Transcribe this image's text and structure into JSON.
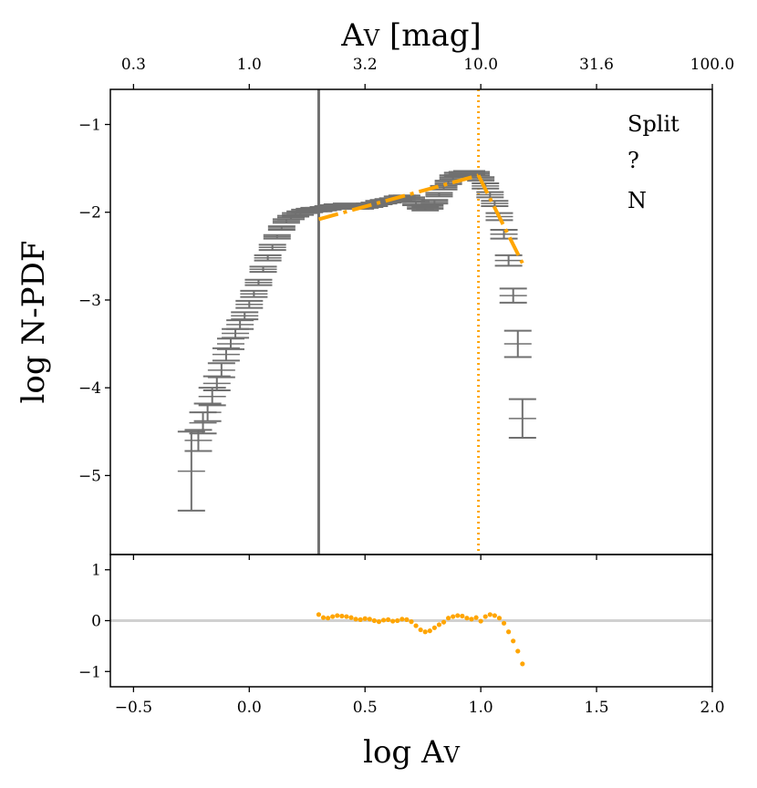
{
  "chart_data": [
    {
      "type": "errorbar",
      "panel": "main",
      "title": "",
      "xlabel": "log A",
      "xlabel_sub": "V",
      "ylabel": "log N-PDF",
      "top_xlabel": "A",
      "top_xlabel_sub": "V",
      "top_xlabel_suffix": " [mag]",
      "xlim": [
        -0.6,
        2.0
      ],
      "ylim": [
        -5.9,
        -0.6
      ],
      "x_ticks": [
        -0.5,
        0.0,
        0.5,
        1.0,
        1.5,
        2.0
      ],
      "x_tick_labels": [
        "−0.5",
        "0.0",
        "0.5",
        "1.0",
        "1.5",
        "2.0"
      ],
      "y_ticks": [
        -1,
        -2,
        -3,
        -4,
        -5
      ],
      "y_tick_labels": [
        "−1",
        "−2",
        "−3",
        "−4",
        "−5"
      ],
      "top_ticks_log": [
        -0.5,
        0.0,
        0.5,
        1.0,
        1.5,
        2.0
      ],
      "top_tick_labels": [
        "0.3",
        "1.0",
        "3.2",
        "10.0",
        "31.6",
        "100.0"
      ],
      "annotations": [
        "Split",
        "?",
        "N"
      ],
      "vertical_lines": [
        {
          "x": 0.3,
          "style": "solid",
          "color": "#707070"
        },
        {
          "x": 0.99,
          "style": "dotted",
          "color": "#FFA500"
        }
      ],
      "fits": [
        {
          "x": [
            0.3,
            0.99
          ],
          "y": [
            -2.08,
            -1.58
          ],
          "style": "dashdot",
          "color": "#FFA500"
        },
        {
          "x": [
            0.99,
            1.18
          ],
          "y": [
            -1.58,
            -2.58
          ],
          "style": "dashdot",
          "color": "#FFA500"
        }
      ],
      "series": [
        {
          "name": "N-PDF",
          "color": "#707070",
          "points": [
            [
              -0.25,
              -4.95,
              0.45
            ],
            [
              -0.22,
              -4.6,
              0.12
            ],
            [
              -0.2,
              -4.4,
              0.12
            ],
            [
              -0.18,
              -4.28,
              0.1
            ],
            [
              -0.16,
              -4.1,
              0.1
            ],
            [
              -0.14,
              -3.95,
              0.08
            ],
            [
              -0.12,
              -3.8,
              0.08
            ],
            [
              -0.1,
              -3.62,
              0.07
            ],
            [
              -0.08,
              -3.5,
              0.06
            ],
            [
              -0.06,
              -3.38,
              0.05
            ],
            [
              -0.04,
              -3.28,
              0.05
            ],
            [
              -0.02,
              -3.18,
              0.04
            ],
            [
              0.0,
              -3.05,
              0.04
            ],
            [
              0.02,
              -2.93,
              0.035
            ],
            [
              0.04,
              -2.8,
              0.03
            ],
            [
              0.06,
              -2.65,
              0.03
            ],
            [
              0.08,
              -2.52,
              0.03
            ],
            [
              0.1,
              -2.4,
              0.03
            ],
            [
              0.12,
              -2.28,
              0.02
            ],
            [
              0.14,
              -2.18,
              0.02
            ],
            [
              0.16,
              -2.1,
              0.02
            ],
            [
              0.18,
              -2.06,
              0.02
            ],
            [
              0.2,
              -2.03,
              0.02
            ],
            [
              0.22,
              -2.01,
              0.02
            ],
            [
              0.24,
              -1.99,
              0.02
            ],
            [
              0.26,
              -1.98,
              0.02
            ],
            [
              0.28,
              -1.97,
              0.02
            ],
            [
              0.3,
              -1.97,
              0.02
            ],
            [
              0.32,
              -1.96,
              0.02
            ],
            [
              0.34,
              -1.95,
              0.02
            ],
            [
              0.36,
              -1.94,
              0.02
            ],
            [
              0.38,
              -1.93,
              0.02
            ],
            [
              0.4,
              -1.93,
              0.02
            ],
            [
              0.42,
              -1.92,
              0.02
            ],
            [
              0.44,
              -1.93,
              0.02
            ],
            [
              0.46,
              -1.94,
              0.02
            ],
            [
              0.48,
              -1.94,
              0.02
            ],
            [
              0.5,
              -1.93,
              0.02
            ],
            [
              0.52,
              -1.92,
              0.02
            ],
            [
              0.54,
              -1.91,
              0.02
            ],
            [
              0.56,
              -1.89,
              0.02
            ],
            [
              0.58,
              -1.88,
              0.02
            ],
            [
              0.6,
              -1.87,
              0.02
            ],
            [
              0.62,
              -1.86,
              0.02
            ],
            [
              0.64,
              -1.84,
              0.02
            ],
            [
              0.66,
              -1.83,
              0.02
            ],
            [
              0.68,
              -1.83,
              0.02
            ],
            [
              0.7,
              -1.85,
              0.02
            ],
            [
              0.72,
              -1.9,
              0.02
            ],
            [
              0.74,
              -1.94,
              0.02
            ],
            [
              0.76,
              -1.96,
              0.02
            ],
            [
              0.78,
              -1.94,
              0.02
            ],
            [
              0.8,
              -1.88,
              0.02
            ],
            [
              0.82,
              -1.8,
              0.02
            ],
            [
              0.84,
              -1.72,
              0.02
            ],
            [
              0.86,
              -1.66,
              0.02
            ],
            [
              0.88,
              -1.6,
              0.02
            ],
            [
              0.9,
              -1.57,
              0.02
            ],
            [
              0.92,
              -1.56,
              0.02
            ],
            [
              0.94,
              -1.55,
              0.02
            ],
            [
              0.96,
              -1.55,
              0.02
            ],
            [
              0.98,
              -1.56,
              0.02
            ],
            [
              1.0,
              -1.62,
              0.02
            ],
            [
              1.02,
              -1.7,
              0.03
            ],
            [
              1.04,
              -1.8,
              0.03
            ],
            [
              1.06,
              -1.9,
              0.03
            ],
            [
              1.08,
              -2.05,
              0.04
            ],
            [
              1.1,
              -2.25,
              0.05
            ],
            [
              1.12,
              -2.55,
              0.06
            ],
            [
              1.14,
              -2.95,
              0.08
            ],
            [
              1.16,
              -3.5,
              0.15
            ],
            [
              1.18,
              -4.35,
              0.22
            ]
          ]
        }
      ]
    },
    {
      "type": "scatter",
      "panel": "residual",
      "xlim": [
        -0.6,
        2.0
      ],
      "ylim": [
        -1.3,
        1.3
      ],
      "y_ticks": [
        1,
        0,
        -1
      ],
      "y_tick_labels": [
        "1",
        "0",
        "−1"
      ],
      "baseline": 0,
      "color": "#FFA500",
      "x": [
        0.3,
        0.32,
        0.34,
        0.36,
        0.38,
        0.4,
        0.42,
        0.44,
        0.46,
        0.48,
        0.5,
        0.52,
        0.54,
        0.56,
        0.58,
        0.6,
        0.62,
        0.64,
        0.66,
        0.68,
        0.7,
        0.72,
        0.74,
        0.76,
        0.78,
        0.8,
        0.82,
        0.84,
        0.86,
        0.88,
        0.9,
        0.92,
        0.94,
        0.96,
        0.98,
        1.0,
        1.02,
        1.04,
        1.06,
        1.08,
        1.1,
        1.12,
        1.14,
        1.16,
        1.18
      ],
      "y": [
        0.12,
        0.06,
        0.05,
        0.08,
        0.1,
        0.09,
        0.08,
        0.06,
        0.03,
        0.02,
        0.04,
        0.03,
        0.0,
        -0.02,
        0.01,
        0.02,
        -0.01,
        0.0,
        0.03,
        0.02,
        -0.02,
        -0.1,
        -0.18,
        -0.22,
        -0.2,
        -0.14,
        -0.08,
        -0.03,
        0.05,
        0.08,
        0.1,
        0.09,
        0.05,
        0.03,
        0.06,
        -0.01,
        0.08,
        0.12,
        0.1,
        0.05,
        -0.05,
        -0.22,
        -0.4,
        -0.6,
        -0.85
      ]
    }
  ]
}
